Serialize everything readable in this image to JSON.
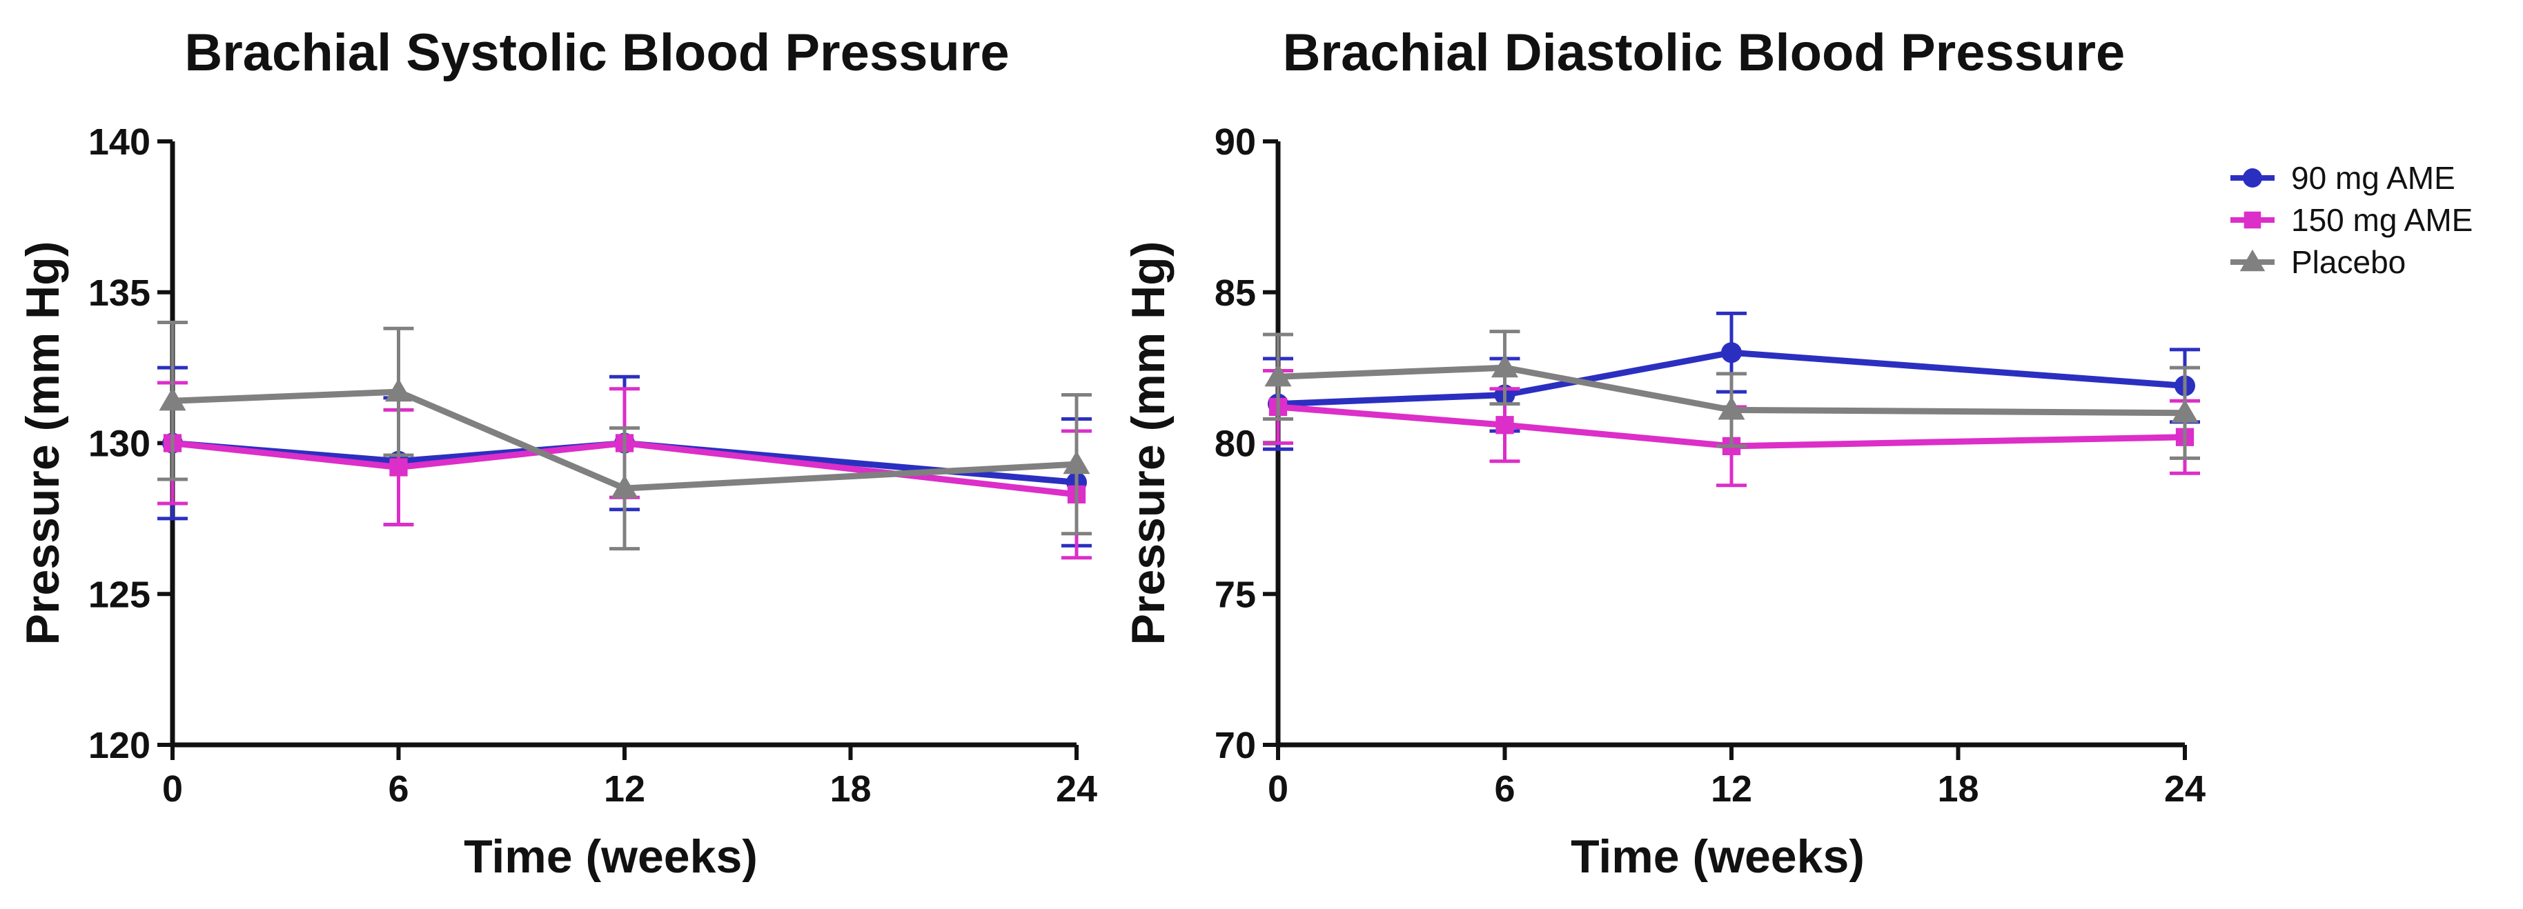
{
  "chart_data": [
    {
      "type": "line",
      "title": "Brachial Systolic Blood Pressure",
      "xlabel": "Time (weeks)",
      "ylabel": "Pressure (mm Hg)",
      "x": [
        0,
        6,
        12,
        24
      ],
      "xticks": [
        "0",
        "6",
        "12",
        "18",
        "24"
      ],
      "yticks": [
        "120",
        "125",
        "130",
        "135",
        "140"
      ],
      "xlim": [
        0,
        24
      ],
      "ylim": [
        120,
        140
      ],
      "grid": false,
      "series": [
        {
          "name": "90 mg AME",
          "color": "#2b2fc0",
          "marker": "circle",
          "values": [
            130.0,
            129.4,
            130.0,
            128.7
          ],
          "errors": [
            2.5,
            2.1,
            2.2,
            2.1
          ]
        },
        {
          "name": "150 mg AME",
          "color": "#dc2ec8",
          "marker": "square",
          "values": [
            130.0,
            129.2,
            130.0,
            128.3
          ],
          "errors": [
            2.0,
            1.9,
            1.8,
            2.1
          ]
        },
        {
          "name": "Placebo",
          "color": "#808080",
          "marker": "triangle",
          "values": [
            131.4,
            131.7,
            128.5,
            129.3
          ],
          "errors": [
            2.6,
            2.1,
            2.0,
            2.3
          ]
        }
      ]
    },
    {
      "type": "line",
      "title": "Brachial Diastolic Blood Pressure",
      "xlabel": "Time (weeks)",
      "ylabel": "Pressure (mm Hg)",
      "x": [
        0,
        6,
        12,
        24
      ],
      "xticks": [
        "0",
        "6",
        "12",
        "18",
        "24"
      ],
      "yticks": [
        "70",
        "75",
        "80",
        "85",
        "90"
      ],
      "xlim": [
        0,
        24
      ],
      "ylim": [
        70,
        90
      ],
      "grid": false,
      "legend": "top-right",
      "series": [
        {
          "name": "90 mg AME",
          "color": "#2b2fc0",
          "marker": "circle",
          "values": [
            81.3,
            81.6,
            83.0,
            81.9
          ],
          "errors": [
            1.5,
            1.2,
            1.3,
            1.2
          ]
        },
        {
          "name": "150 mg AME",
          "color": "#dc2ec8",
          "marker": "square",
          "values": [
            81.2,
            80.6,
            79.9,
            80.2
          ],
          "errors": [
            1.2,
            1.2,
            1.3,
            1.2
          ]
        },
        {
          "name": "Placebo",
          "color": "#808080",
          "marker": "triangle",
          "values": [
            82.2,
            82.5,
            81.1,
            81.0
          ],
          "errors": [
            1.4,
            1.2,
            1.2,
            1.5
          ]
        }
      ]
    }
  ]
}
